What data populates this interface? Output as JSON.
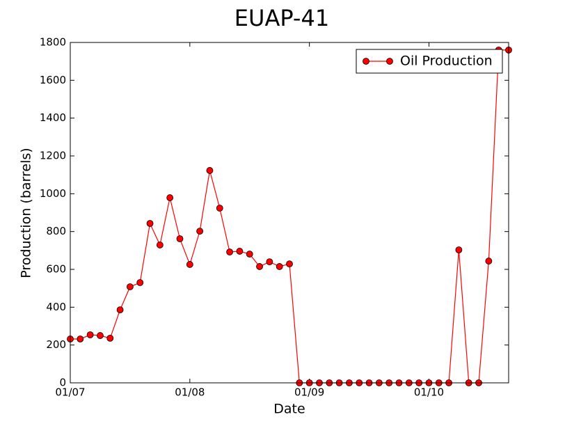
{
  "chart_data": {
    "type": "line",
    "title": "EUAP-41",
    "x_label": "Date",
    "y_label": "Production (barrels)",
    "x": [
      "01/07",
      "02/07",
      "03/07",
      "04/07",
      "05/07",
      "06/07",
      "07/07",
      "08/07",
      "09/07",
      "10/07",
      "11/07",
      "12/07",
      "01/08",
      "02/08",
      "03/08",
      "04/08",
      "05/08",
      "06/08",
      "07/08",
      "08/08",
      "09/08",
      "10/08",
      "11/08",
      "12/08",
      "01/09",
      "02/09",
      "03/09",
      "04/09",
      "05/09",
      "06/09",
      "07/09",
      "08/09",
      "09/09",
      "10/09",
      "11/09",
      "12/09",
      "01/10",
      "02/10",
      "03/10",
      "04/10",
      "05/10",
      "06/10",
      "07/10",
      "08/10",
      "09/10"
    ],
    "series": [
      {
        "name": "Oil Production",
        "color": "#ff0000",
        "values": [
          232,
          232,
          254,
          250,
          236,
          386,
          508,
          530,
          843,
          729,
          979,
          762,
          626,
          802,
          1123,
          924,
          692,
          696,
          681,
          615,
          640,
          615,
          629,
          0,
          0,
          0,
          0,
          0,
          0,
          0,
          0,
          0,
          0,
          0,
          0,
          0,
          0,
          0,
          0,
          703,
          0,
          0,
          644,
          1760,
          1760
        ]
      }
    ],
    "xlim": [
      "01/07",
      "09/10"
    ],
    "xticks": [
      "01/07",
      "01/08",
      "01/09",
      "01/10"
    ],
    "ylim": [
      0,
      1800
    ],
    "yticks": [
      0,
      200,
      400,
      600,
      800,
      1000,
      1200,
      1400,
      1600,
      1800
    ],
    "legend": "upper right",
    "grid": false
  }
}
